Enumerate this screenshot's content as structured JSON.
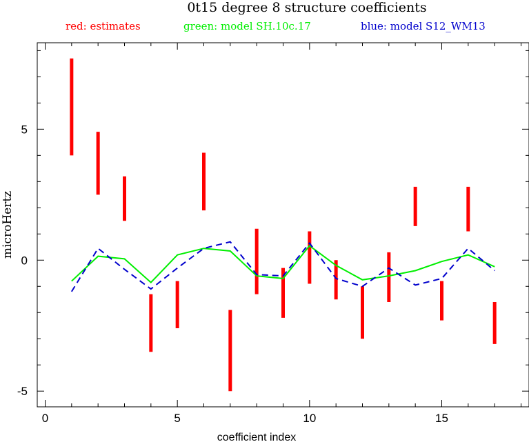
{
  "chart_data": {
    "type": "line",
    "title": "0t15 degree 8 structure coefficients",
    "legend": {
      "placement": "top",
      "entries": [
        {
          "text": "red: estimates",
          "color": "#ff0000"
        },
        {
          "text": "green: model SH.10c.17",
          "color": "#00ee00"
        },
        {
          "text": "blue: model S12_WM13",
          "color": "#0000cc"
        }
      ]
    },
    "xlabel": "coefficient index",
    "ylabel": "microHertz",
    "xlim": [
      -0.3,
      18.3
    ],
    "ylim": [
      -5.6,
      8.3
    ],
    "xticks": [
      0,
      5,
      10,
      15
    ],
    "yticks": [
      -5,
      0,
      5
    ],
    "grid": false,
    "estimates": {
      "name": "estimates",
      "color": "#ff0000",
      "x": [
        1,
        2,
        3,
        4,
        5,
        6,
        7,
        8,
        9,
        10,
        11,
        12,
        13,
        14,
        15,
        16,
        17
      ],
      "low": [
        4.0,
        2.5,
        1.5,
        -3.5,
        -2.6,
        1.9,
        -5.0,
        -1.3,
        -2.2,
        -0.9,
        -1.5,
        -3.0,
        -1.6,
        1.3,
        -2.3,
        1.1,
        -3.2
      ],
      "high": [
        7.7,
        4.9,
        3.2,
        -1.3,
        -0.8,
        4.1,
        -1.9,
        1.2,
        -0.3,
        1.1,
        0.0,
        -1.0,
        0.3,
        2.8,
        -0.8,
        2.8,
        -1.6
      ]
    },
    "series": [
      {
        "name": "model SH.10c.17",
        "color": "#00ee00",
        "style": "solid",
        "x": [
          1,
          2,
          3,
          4,
          5,
          6,
          7,
          8,
          9,
          10,
          11,
          12,
          13,
          14,
          15,
          16,
          17
        ],
        "values": [
          -0.8,
          0.15,
          0.05,
          -0.85,
          0.2,
          0.45,
          0.35,
          -0.6,
          -0.7,
          0.55,
          -0.2,
          -0.75,
          -0.6,
          -0.4,
          -0.05,
          0.2,
          -0.25
        ]
      },
      {
        "name": "model S12_WM13",
        "color": "#0000cc",
        "style": "dashed",
        "x": [
          1,
          2,
          3,
          4,
          5,
          6,
          7,
          8,
          9,
          10,
          11,
          12,
          13,
          14,
          15,
          16,
          17
        ],
        "values": [
          -1.2,
          0.45,
          -0.35,
          -1.1,
          -0.3,
          0.45,
          0.7,
          -0.55,
          -0.6,
          0.65,
          -0.7,
          -1.0,
          -0.3,
          -0.95,
          -0.7,
          0.45,
          -0.4
        ]
      }
    ]
  }
}
